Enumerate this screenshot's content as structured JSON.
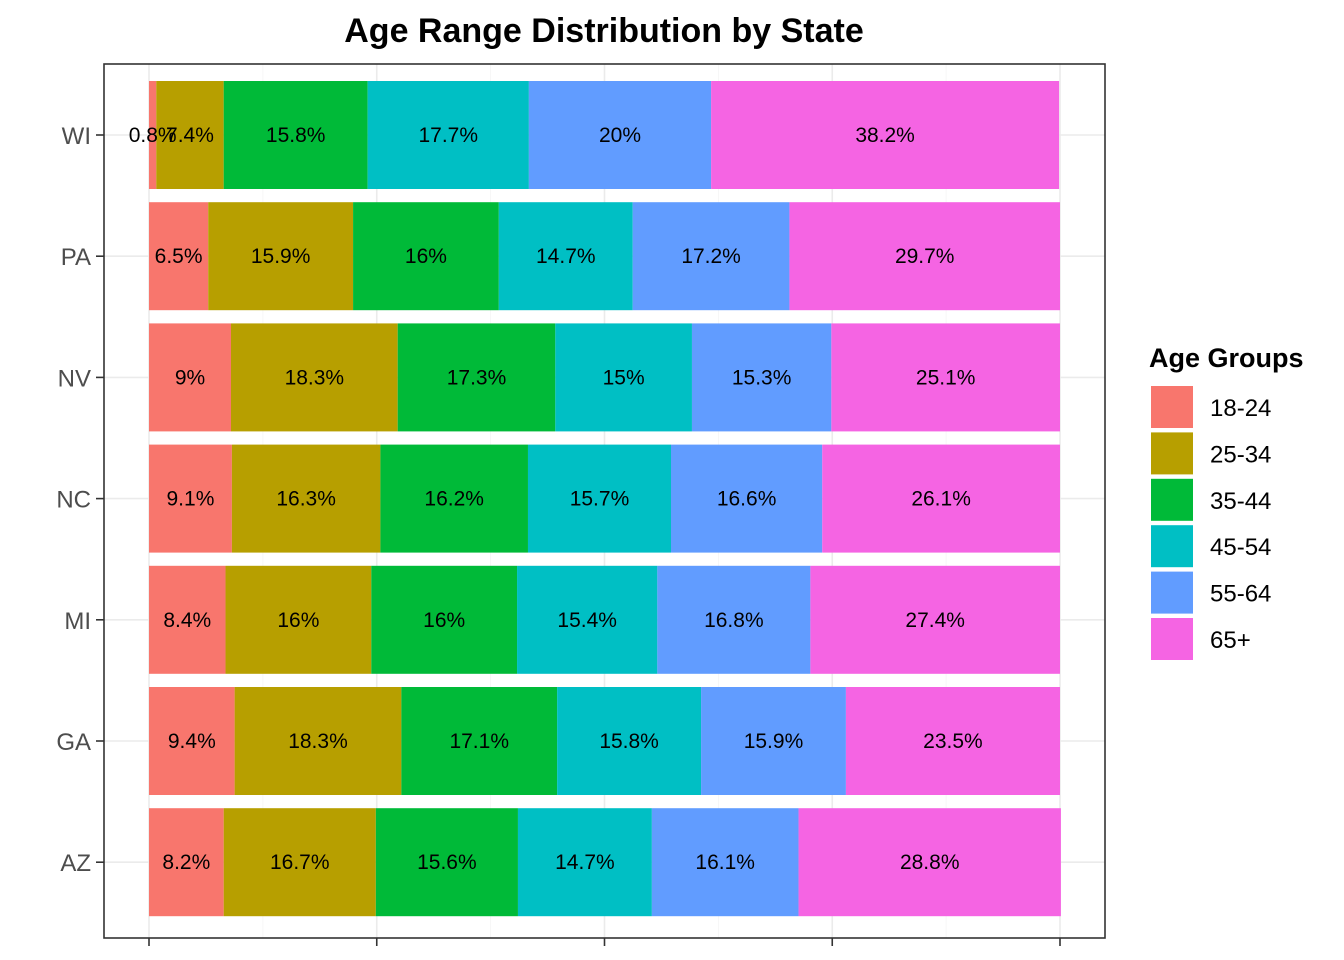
{
  "chart_data": {
    "type": "bar",
    "orientation": "horizontal",
    "stacked": true,
    "title": "Age Range Distribution by State",
    "xlabel": "",
    "ylabel": "",
    "categories": [
      "AZ",
      "GA",
      "MI",
      "NC",
      "NV",
      "PA",
      "WI"
    ],
    "series": [
      {
        "name": "18-24",
        "color": "#F8766D",
        "values": [
          8.2,
          9.4,
          8.4,
          9.1,
          9,
          6.5,
          0.8
        ]
      },
      {
        "name": "25-34",
        "color": "#B79F00",
        "values": [
          16.7,
          18.3,
          16,
          16.3,
          18.3,
          15.9,
          7.4
        ]
      },
      {
        "name": "35-44",
        "color": "#00BA38",
        "values": [
          15.6,
          17.1,
          16,
          16.2,
          17.3,
          16,
          15.8
        ]
      },
      {
        "name": "45-54",
        "color": "#00BFC4",
        "values": [
          14.7,
          15.8,
          15.4,
          15.7,
          15,
          14.7,
          17.7
        ]
      },
      {
        "name": "55-64",
        "color": "#619CFF",
        "values": [
          16.1,
          15.9,
          16.8,
          16.6,
          15.3,
          17.2,
          20
        ]
      },
      {
        "name": "65+",
        "color": "#F564E3",
        "values": [
          28.8,
          23.5,
          27.4,
          26.1,
          25.1,
          29.7,
          38.2
        ]
      }
    ],
    "labels": {
      "AZ": [
        "8.2%",
        "16.7%",
        "15.6%",
        "14.7%",
        "16.1%",
        "28.8%"
      ],
      "GA": [
        "9.4%",
        "18.3%",
        "17.1%",
        "15.8%",
        "15.9%",
        "23.5%"
      ],
      "MI": [
        "8.4%",
        "16%",
        "16%",
        "15.4%",
        "16.8%",
        "27.4%"
      ],
      "NC": [
        "9.1%",
        "16.3%",
        "16.2%",
        "15.7%",
        "16.6%",
        "26.1%"
      ],
      "NV": [
        "9%",
        "18.3%",
        "17.3%",
        "15%",
        "15.3%",
        "25.1%"
      ],
      "PA": [
        "6.5%",
        "15.9%",
        "16%",
        "14.7%",
        "17.2%",
        "29.7%"
      ],
      "WI": [
        "0.8%",
        "7.4%",
        "15.8%",
        "17.7%",
        "20%",
        "38.2%"
      ]
    },
    "xlim": [
      0,
      100
    ],
    "grid": true,
    "legend": {
      "title": "Age Groups",
      "position": "right"
    }
  }
}
